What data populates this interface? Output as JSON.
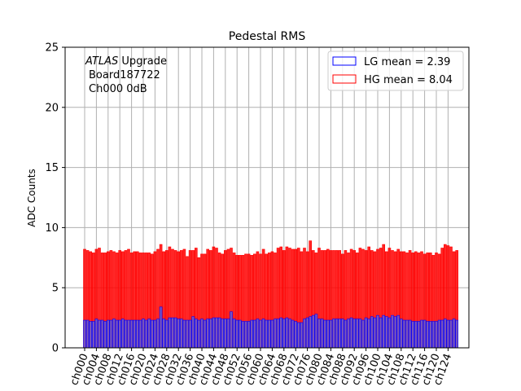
{
  "chart_data": {
    "type": "bar",
    "title": "Pedestal RMS",
    "xlabel": "",
    "ylabel": "ADC Counts",
    "ylim": [
      0,
      25
    ],
    "yticks": [
      0,
      5,
      10,
      15,
      20,
      25
    ],
    "grid": true,
    "legend_position": "top-right",
    "annotation": {
      "line1_italic": "ATLAS",
      "line1_rest": "Upgrade",
      "line2": "Board187722",
      "line3": "Ch000 0dB"
    },
    "colors": {
      "LG": "#0000ff",
      "HG": "#ff0000",
      "LG_fill": "#6a5acd"
    },
    "xtick_labels": [
      "ch000",
      "ch004",
      "ch008",
      "ch012",
      "ch016",
      "ch020",
      "ch024",
      "ch028",
      "ch032",
      "ch036",
      "ch040",
      "ch044",
      "ch048",
      "ch052",
      "ch056",
      "ch060",
      "ch064",
      "ch068",
      "ch072",
      "ch076",
      "ch080",
      "ch084",
      "ch088",
      "ch092",
      "ch096",
      "ch100",
      "ch104",
      "ch108",
      "ch112",
      "ch116",
      "ch120",
      "ch124"
    ],
    "series": [
      {
        "name": "HG mean = 8.04",
        "values": [
          8.2,
          8.1,
          8.0,
          7.9,
          8.2,
          8.3,
          7.9,
          7.9,
          8.0,
          8.1,
          8.0,
          7.9,
          8.1,
          8.0,
          8.1,
          8.2,
          7.9,
          8.0,
          8.0,
          7.9,
          7.9,
          7.9,
          7.9,
          7.8,
          8.0,
          8.2,
          8.6,
          8.0,
          8.1,
          8.4,
          8.2,
          8.1,
          8.0,
          8.1,
          8.2,
          7.6,
          8.1,
          8.1,
          8.3,
          7.5,
          7.8,
          7.8,
          8.2,
          8.1,
          8.4,
          8.3,
          7.9,
          7.8,
          8.1,
          8.2,
          8.3,
          7.9,
          7.7,
          7.7,
          7.7,
          7.8,
          7.8,
          7.7,
          7.8,
          8.0,
          7.8,
          8.2,
          7.8,
          7.9,
          8.0,
          7.9,
          8.3,
          8.4,
          8.1,
          8.4,
          8.3,
          8.2,
          8.2,
          8.3,
          8.0,
          8.3,
          8.0,
          8.9,
          8.1,
          7.9,
          8.3,
          8.1,
          8.1,
          8.2,
          8.1,
          8.1,
          8.1,
          8.1,
          7.8,
          8.1,
          7.9,
          8.2,
          8.1,
          7.9,
          8.3,
          8.2,
          8.1,
          8.4,
          8.1,
          8.0,
          8.2,
          8.3,
          8.6,
          8.0,
          8.3,
          8.1,
          8.0,
          8.2,
          8.0,
          8.0,
          7.9,
          8.1,
          7.9,
          8.0,
          7.9,
          8.0,
          7.8,
          7.9,
          7.9,
          7.7,
          7.9,
          7.8,
          8.3,
          8.6,
          8.5,
          8.4,
          8.0,
          8.1
        ],
        "mean_label": "HG mean = 8.04"
      },
      {
        "name": "LG mean = 2.39",
        "values": [
          2.3,
          2.3,
          2.2,
          2.2,
          2.4,
          2.3,
          2.3,
          2.2,
          2.3,
          2.3,
          2.4,
          2.3,
          2.3,
          2.4,
          2.3,
          2.3,
          2.3,
          2.3,
          2.3,
          2.3,
          2.4,
          2.3,
          2.4,
          2.3,
          2.3,
          2.4,
          3.4,
          2.4,
          2.3,
          2.5,
          2.5,
          2.5,
          2.4,
          2.4,
          2.3,
          2.3,
          2.3,
          2.6,
          2.4,
          2.3,
          2.4,
          2.3,
          2.4,
          2.4,
          2.5,
          2.5,
          2.5,
          2.4,
          2.4,
          2.4,
          3.0,
          2.4,
          2.3,
          2.3,
          2.2,
          2.2,
          2.2,
          2.3,
          2.3,
          2.4,
          2.3,
          2.4,
          2.3,
          2.3,
          2.3,
          2.4,
          2.4,
          2.5,
          2.4,
          2.5,
          2.4,
          2.3,
          2.2,
          2.1,
          2.1,
          2.4,
          2.5,
          2.6,
          2.7,
          2.8,
          2.4,
          2.4,
          2.3,
          2.3,
          2.3,
          2.4,
          2.4,
          2.4,
          2.4,
          2.3,
          2.4,
          2.5,
          2.4,
          2.4,
          2.4,
          2.3,
          2.5,
          2.4,
          2.6,
          2.5,
          2.7,
          2.5,
          2.7,
          2.6,
          2.5,
          2.7,
          2.6,
          2.7,
          2.4,
          2.3,
          2.3,
          2.3,
          2.2,
          2.2,
          2.2,
          2.3,
          2.3,
          2.2,
          2.2,
          2.2,
          2.2,
          2.3,
          2.3,
          2.4,
          2.3,
          2.3,
          2.4,
          2.3
        ]
      }
    ]
  }
}
